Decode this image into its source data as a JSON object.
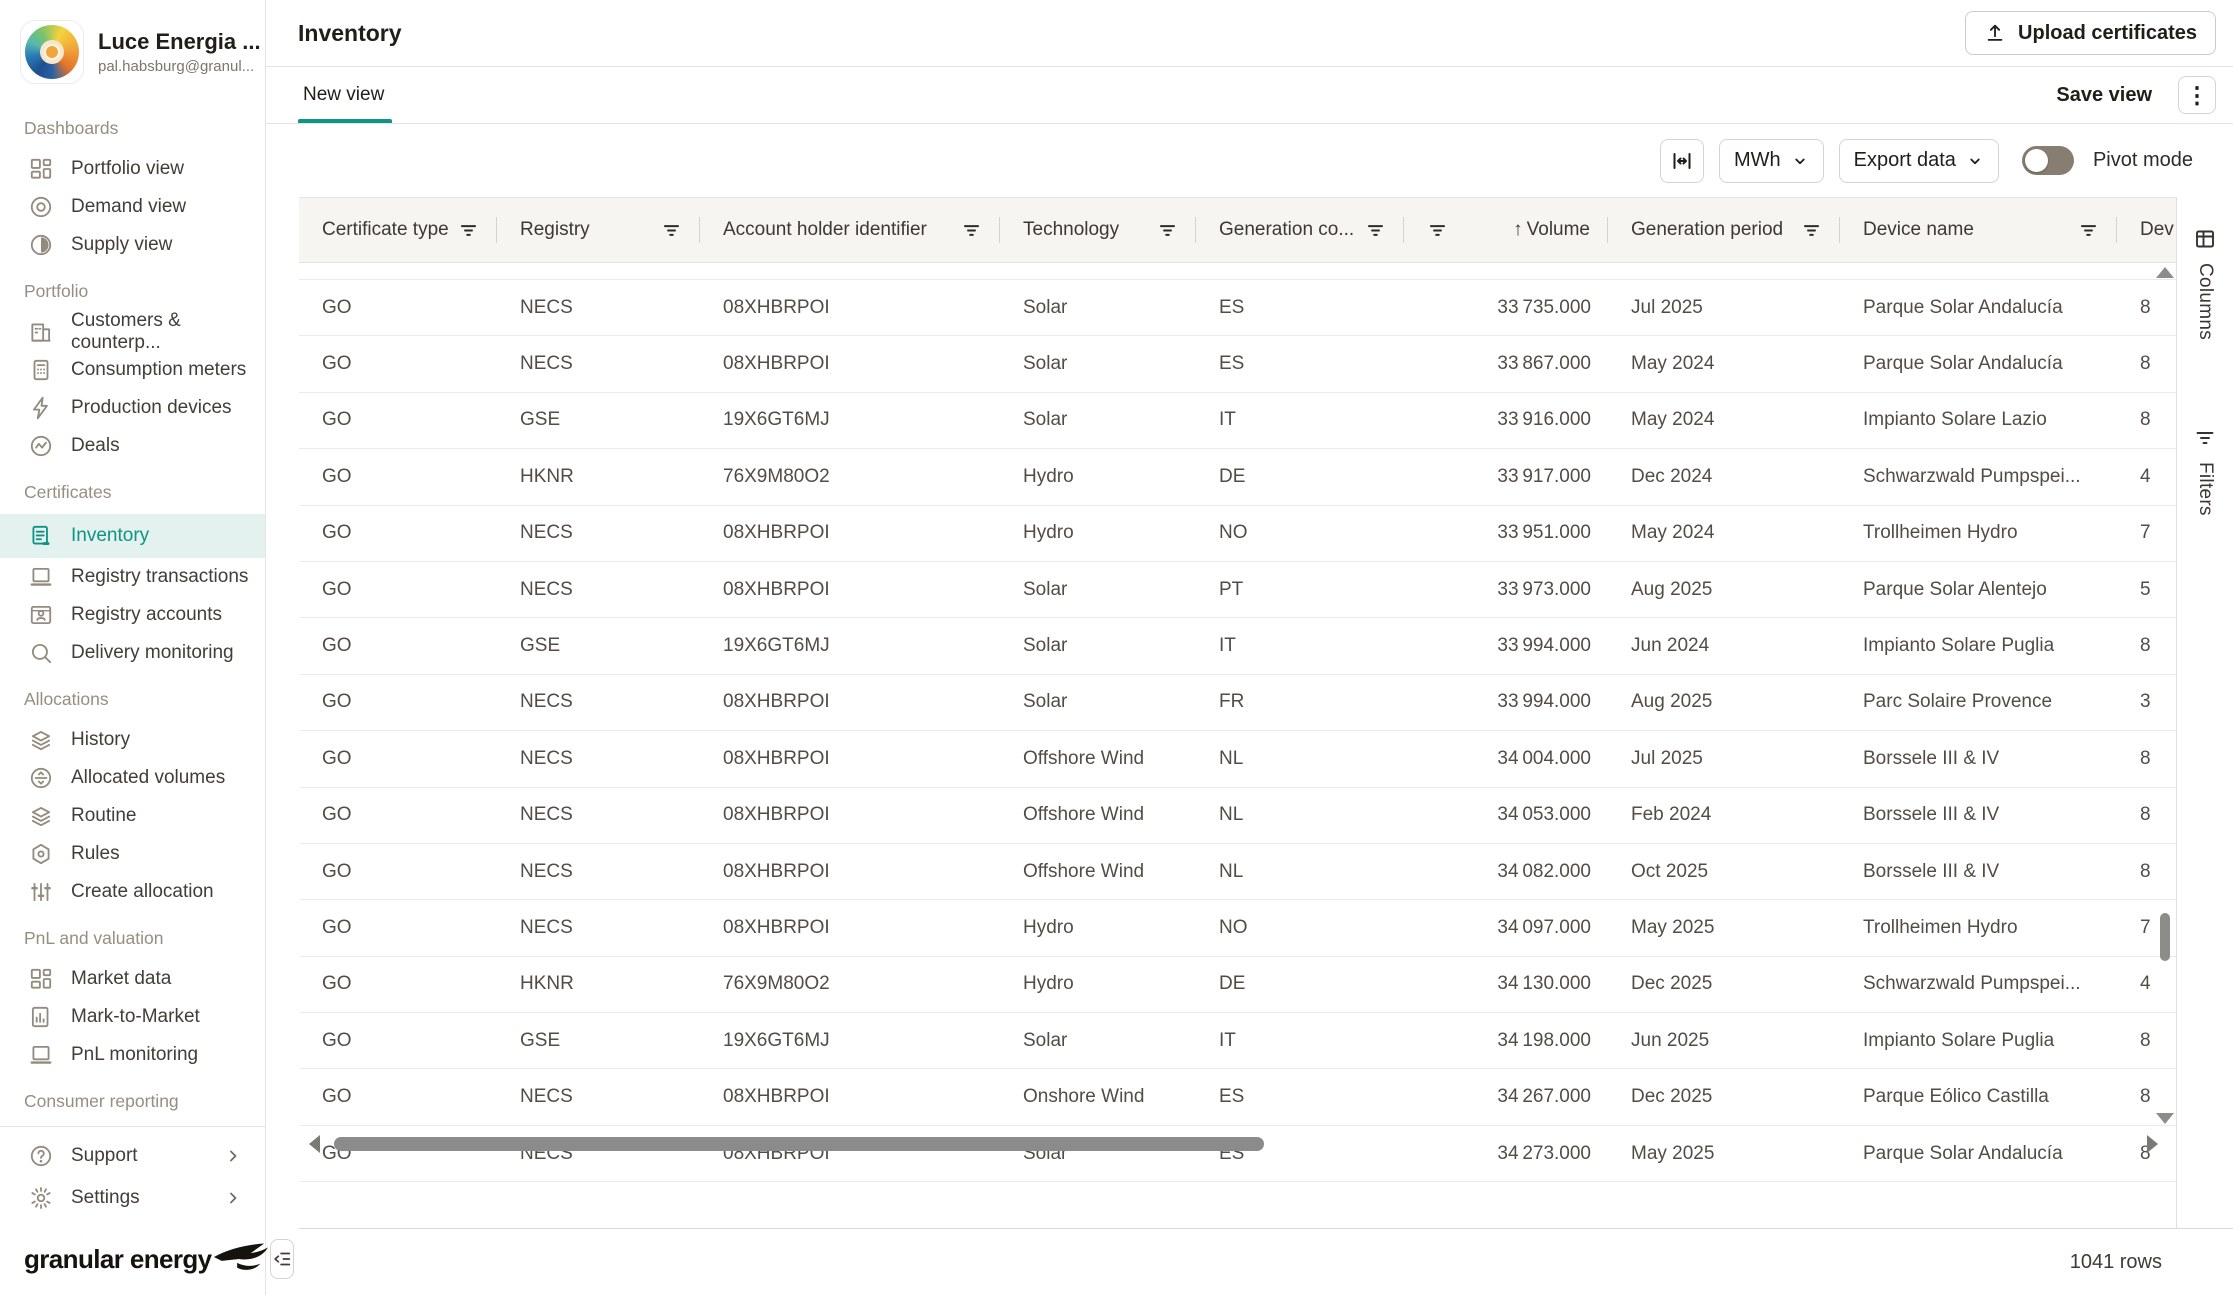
{
  "sidebar": {
    "org": {
      "name": "Luce Energia ...",
      "email": "pal.habsburg@granul..."
    },
    "sections": [
      {
        "title": "Dashboards",
        "items": [
          {
            "label": "Portfolio view",
            "icon": "grid"
          },
          {
            "label": "Demand view",
            "icon": "target"
          },
          {
            "label": "Supply view",
            "icon": "gauge"
          }
        ]
      },
      {
        "title": "Portfolio",
        "items": [
          {
            "label": "Customers & counterp...",
            "icon": "building"
          },
          {
            "label": "Consumption meters",
            "icon": "meter"
          },
          {
            "label": "Production devices",
            "icon": "bolt"
          },
          {
            "label": "Deals",
            "icon": "deals"
          }
        ]
      },
      {
        "title": "Certificates",
        "items": [
          {
            "label": "Inventory",
            "icon": "document",
            "active": true
          },
          {
            "label": "Registry transactions",
            "icon": "laptop"
          },
          {
            "label": "Registry accounts",
            "icon": "idcard"
          },
          {
            "label": "Delivery monitoring",
            "icon": "search"
          }
        ]
      },
      {
        "title": "Allocations",
        "items": [
          {
            "label": "History",
            "icon": "layers"
          },
          {
            "label": "Allocated volumes",
            "icon": "circle-split"
          },
          {
            "label": "Routine",
            "icon": "layers"
          },
          {
            "label": "Rules",
            "icon": "hexagon"
          },
          {
            "label": "Create allocation",
            "icon": "sliders"
          }
        ]
      },
      {
        "title": "PnL and valuation",
        "items": [
          {
            "label": "Market data",
            "icon": "grid"
          },
          {
            "label": "Mark-to-Market",
            "icon": "chart-doc"
          },
          {
            "label": "PnL monitoring",
            "icon": "laptop"
          }
        ]
      },
      {
        "title": "Consumer reporting",
        "items": []
      }
    ],
    "footer_items": [
      {
        "label": "Support",
        "icon": "question"
      },
      {
        "label": "Settings",
        "icon": "gear"
      }
    ],
    "brand": "granular energy"
  },
  "header": {
    "title": "Inventory",
    "upload_button": "Upload certificates"
  },
  "tabs": {
    "active_label": "New view",
    "save_view_label": "Save view"
  },
  "toolbar": {
    "unit_label": "MWh",
    "export_label": "Export data",
    "pivot_label": "Pivot mode"
  },
  "side_panel": {
    "tabs": [
      {
        "label": "Columns",
        "icon": "columns-panel"
      },
      {
        "label": "Filters",
        "icon": "filter"
      }
    ]
  },
  "table": {
    "columns": [
      {
        "label": "Certificate type",
        "filter": true
      },
      {
        "label": "Registry",
        "filter": true
      },
      {
        "label": "Account holder identifier",
        "filter": true
      },
      {
        "label": "Technology",
        "filter": true
      },
      {
        "label": "Generation co...",
        "filter": true
      },
      {
        "label": "Volume",
        "filter": true,
        "sort": "asc",
        "align": "right"
      },
      {
        "label": "Generation period",
        "filter": true
      },
      {
        "label": "Device name",
        "filter": true
      },
      {
        "label": "Dev",
        "filter": false
      }
    ],
    "rows": [
      [
        "GO",
        "NECS",
        "08XHBRPOI",
        "Solar",
        "ES",
        "33 735.000",
        "Jul 2025",
        "Parque Solar Andalucía",
        "8"
      ],
      [
        "GO",
        "NECS",
        "08XHBRPOI",
        "Solar",
        "ES",
        "33 867.000",
        "May 2024",
        "Parque Solar Andalucía",
        "8"
      ],
      [
        "GO",
        "GSE",
        "19X6GT6MJ",
        "Solar",
        "IT",
        "33 916.000",
        "May 2024",
        "Impianto Solare Lazio",
        "8"
      ],
      [
        "GO",
        "HKNR",
        "76X9M80O2",
        "Hydro",
        "DE",
        "33 917.000",
        "Dec 2024",
        "Schwarzwald Pumpspei...",
        "4"
      ],
      [
        "GO",
        "NECS",
        "08XHBRPOI",
        "Hydro",
        "NO",
        "33 951.000",
        "May 2024",
        "Trollheimen Hydro",
        "7"
      ],
      [
        "GO",
        "NECS",
        "08XHBRPOI",
        "Solar",
        "PT",
        "33 973.000",
        "Aug 2025",
        "Parque Solar Alentejo",
        "5"
      ],
      [
        "GO",
        "GSE",
        "19X6GT6MJ",
        "Solar",
        "IT",
        "33 994.000",
        "Jun 2024",
        "Impianto Solare Puglia",
        "8"
      ],
      [
        "GO",
        "NECS",
        "08XHBRPOI",
        "Solar",
        "FR",
        "33 994.000",
        "Aug 2025",
        "Parc Solaire Provence",
        "3"
      ],
      [
        "GO",
        "NECS",
        "08XHBRPOI",
        "Offshore Wind",
        "NL",
        "34 004.000",
        "Jul 2025",
        "Borssele III & IV",
        "8"
      ],
      [
        "GO",
        "NECS",
        "08XHBRPOI",
        "Offshore Wind",
        "NL",
        "34 053.000",
        "Feb 2024",
        "Borssele III & IV",
        "8"
      ],
      [
        "GO",
        "NECS",
        "08XHBRPOI",
        "Offshore Wind",
        "NL",
        "34 082.000",
        "Oct 2025",
        "Borssele III & IV",
        "8"
      ],
      [
        "GO",
        "NECS",
        "08XHBRPOI",
        "Hydro",
        "NO",
        "34 097.000",
        "May 2025",
        "Trollheimen Hydro",
        "7"
      ],
      [
        "GO",
        "HKNR",
        "76X9M80O2",
        "Hydro",
        "DE",
        "34 130.000",
        "Dec 2025",
        "Schwarzwald Pumpspei...",
        "4"
      ],
      [
        "GO",
        "GSE",
        "19X6GT6MJ",
        "Solar",
        "IT",
        "34 198.000",
        "Jun 2025",
        "Impianto Solare Puglia",
        "8"
      ],
      [
        "GO",
        "NECS",
        "08XHBRPOI",
        "Onshore Wind",
        "ES",
        "34 267.000",
        "Dec 2025",
        "Parque Eólico Castilla",
        "8"
      ],
      [
        "GO",
        "NECS",
        "08XHBRPOI",
        "Solar",
        "ES",
        "34 273.000",
        "May 2025",
        "Parque Solar Andalucía",
        "8"
      ]
    ]
  },
  "status": {
    "rows_label": "1041 rows"
  }
}
